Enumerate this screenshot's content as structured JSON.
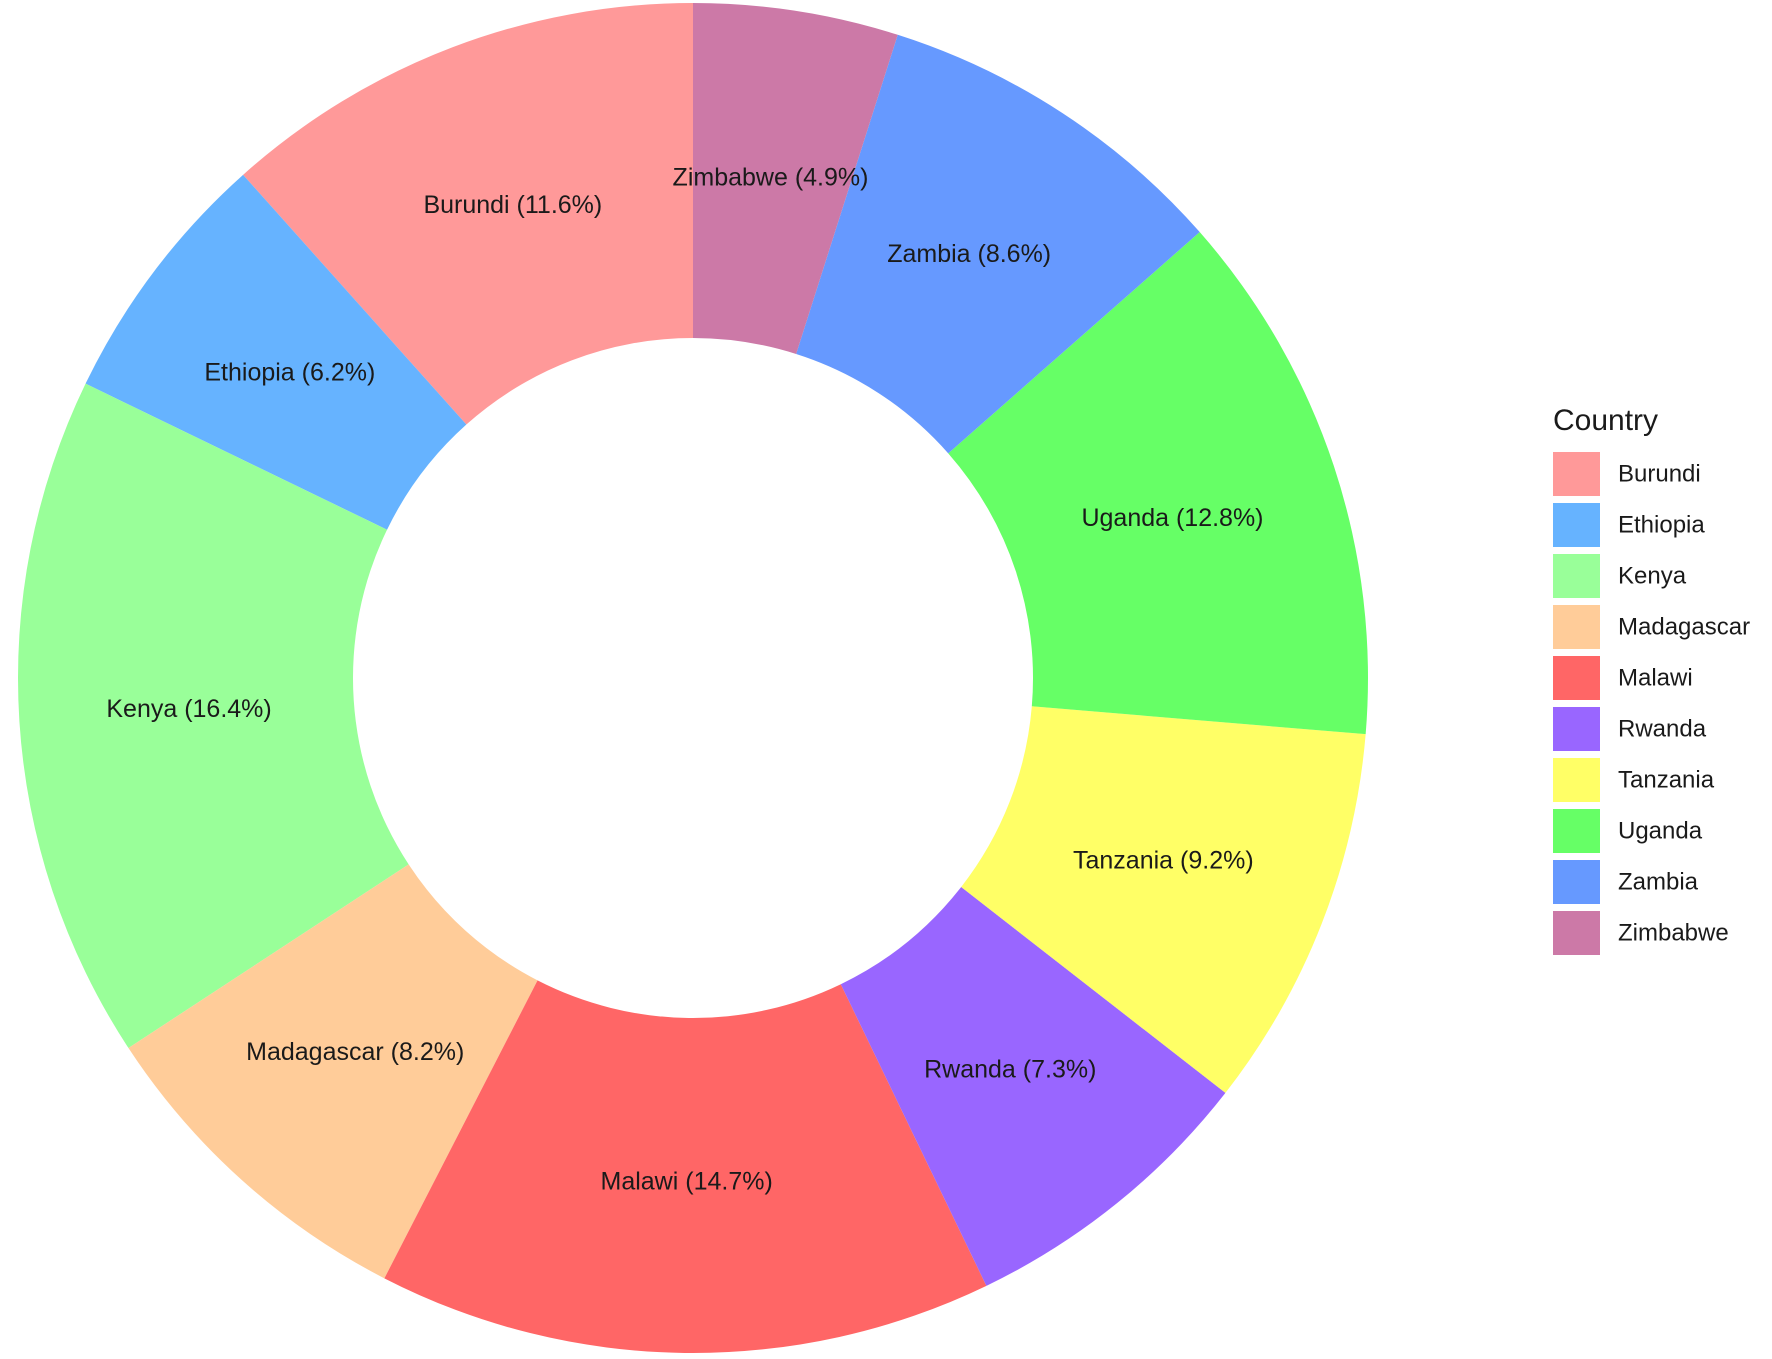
{
  "chart_data": {
    "type": "donut",
    "legend_title": "Country",
    "legend_position": "right",
    "categories": [
      "Burundi",
      "Ethiopia",
      "Kenya",
      "Madagascar",
      "Malawi",
      "Rwanda",
      "Tanzania",
      "Uganda",
      "Zambia",
      "Zimbabwe"
    ],
    "values": [
      11.6,
      6.2,
      16.4,
      8.2,
      14.7,
      7.3,
      9.2,
      12.8,
      8.6,
      4.9
    ],
    "value_labels": [
      "Burundi (11.6%)",
      "Ethiopia (6.2%)",
      "Kenya (16.4%)",
      "Madagascar (8.2%)",
      "Malawi (14.7%)",
      "Rwanda (7.3%)",
      "Tanzania (9.2%)",
      "Uganda (12.8%)",
      "Zambia (8.6%)",
      "Zimbabwe (4.9%)"
    ],
    "colors": [
      "#ff9999",
      "#66b3ff",
      "#99ff99",
      "#ffcc99",
      "#ff6666",
      "#9966ff",
      "#ffff66",
      "#66ff66",
      "#6699ff",
      "#cc79a7"
    ],
    "direction": "counterclockwise"
  }
}
